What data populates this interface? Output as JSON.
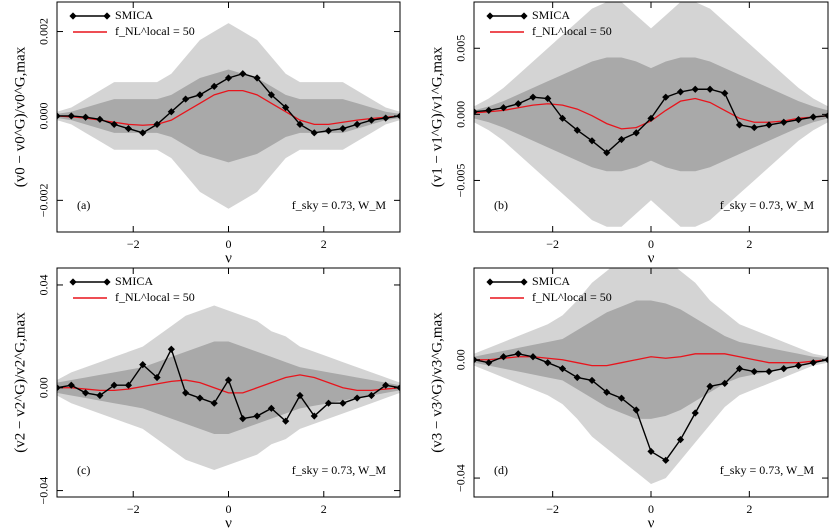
{
  "chart_data": [
    {
      "type": "line",
      "ylabel": "(v0 − v0^G)/v0^G,max",
      "xlabel": "ν",
      "panel_label": "(a)",
      "annotation": "f_sky = 0.73, W_M",
      "x": [
        -3.6,
        -3.3,
        -3.0,
        -2.7,
        -2.4,
        -2.1,
        -1.8,
        -1.5,
        -1.2,
        -0.9,
        -0.6,
        -0.3,
        0,
        0.3,
        0.6,
        0.9,
        1.2,
        1.5,
        1.8,
        2.1,
        2.4,
        2.7,
        3.0,
        3.3,
        3.6
      ],
      "xlim": [
        -3.6,
        3.6
      ],
      "xticks": [
        {
          "value": -2,
          "label": "−2"
        },
        0,
        2
      ],
      "ylim": [
        -0.00275,
        0.0027
      ],
      "yticks": [
        {
          "value": -0.002,
          "label": "−0.002"
        },
        {
          "value": 0,
          "label": "0.000"
        },
        0.002
      ],
      "legend": "upper left",
      "bands": [
        {
          "color": "#d4d4d4",
          "upper": [
            0.0001,
            0.0002,
            0.0004,
            0.0006,
            0.0008,
            0.0008,
            0.0008,
            0.0008,
            0.001,
            0.0014,
            0.0018,
            0.002,
            0.0022,
            0.002,
            0.0018,
            0.0014,
            0.001,
            0.0008,
            0.0008,
            0.0008,
            0.0008,
            0.0006,
            0.0004,
            0.0002,
            0.0001
          ],
          "lower": [
            -0.0001,
            -0.0002,
            -0.0004,
            -0.0006,
            -0.0008,
            -0.0008,
            -0.0008,
            -0.0008,
            -0.001,
            -0.0014,
            -0.0018,
            -0.002,
            -0.0022,
            -0.002,
            -0.0018,
            -0.0014,
            -0.001,
            -0.0008,
            -0.0008,
            -0.0008,
            -0.0008,
            -0.0006,
            -0.0004,
            -0.0002,
            -0.0001
          ]
        },
        {
          "color": "#a9a9a9",
          "upper": [
            5e-05,
            0.0001,
            0.0002,
            0.0003,
            0.0004,
            0.0004,
            0.0004,
            0.0004,
            0.0005,
            0.0007,
            0.0009,
            0.001,
            0.0011,
            0.001,
            0.0009,
            0.0007,
            0.0005,
            0.0004,
            0.0004,
            0.0004,
            0.0004,
            0.0003,
            0.0002,
            0.0001,
            5e-05
          ],
          "lower": [
            -5e-05,
            -0.0001,
            -0.0002,
            -0.0003,
            -0.0004,
            -0.0004,
            -0.0004,
            -0.0004,
            -0.0005,
            -0.0007,
            -0.0009,
            -0.001,
            -0.0011,
            -0.001,
            -0.0009,
            -0.0007,
            -0.0005,
            -0.0004,
            -0.0004,
            -0.0004,
            -0.0004,
            -0.0003,
            -0.0002,
            -0.0001,
            -5e-05
          ]
        }
      ],
      "series": [
        {
          "name": "SMICA",
          "color": "#000000",
          "marker": "diamond",
          "values": [
            0,
            0,
            -3e-05,
            -8e-05,
            -0.0002,
            -0.0003,
            -0.0004,
            -0.0002,
            0.0001,
            0.0004,
            0.0005,
            0.0007,
            0.0009,
            0.001,
            0.0009,
            0.0005,
            0.0002,
            -0.0002,
            -0.0004,
            -0.00035,
            -0.0003,
            -0.0002,
            -0.0001,
            -5e-05,
            0
          ]
        },
        {
          "name": "f_NL^local = 50",
          "color": "#e8141c",
          "values": [
            0,
            -2e-05,
            -5e-05,
            -0.0001,
            -0.00015,
            -0.0002,
            -0.00022,
            -0.0002,
            -0.0001,
            0.0001,
            0.0003,
            0.0005,
            0.0006,
            0.0006,
            0.0005,
            0.0003,
            0.0001,
            -0.0001,
            -0.0002,
            -0.0002,
            -0.00015,
            -0.0001,
            -6e-05,
            -3e-05,
            0
          ]
        }
      ]
    },
    {
      "type": "line",
      "ylabel": "(v1 − v1^G)/v1^G,max",
      "xlabel": "ν",
      "panel_label": "(b)",
      "annotation": "f_sky = 0.73, W_M",
      "x": [
        -3.6,
        -3.3,
        -3.0,
        -2.7,
        -2.4,
        -2.1,
        -1.8,
        -1.5,
        -1.2,
        -0.9,
        -0.6,
        -0.3,
        0,
        0.3,
        0.6,
        0.9,
        1.2,
        1.5,
        1.8,
        2.1,
        2.4,
        2.7,
        3.0,
        3.3,
        3.6
      ],
      "xlim": [
        -3.6,
        3.6
      ],
      "xticks": [
        {
          "value": -2,
          "label": "−2"
        },
        0,
        2
      ],
      "ylim": [
        -0.0089,
        0.0085
      ],
      "yticks": [
        {
          "value": -0.005,
          "label": "−0.005"
        },
        {
          "value": 0,
          "label": "0.000"
        },
        0.005
      ],
      "legend": "upper left",
      "bands": [
        {
          "color": "#d4d4d4",
          "upper": [
            0.0006,
            0.0012,
            0.002,
            0.003,
            0.004,
            0.005,
            0.006,
            0.007,
            0.008,
            0.0085,
            0.0085,
            0.0075,
            0.0065,
            0.0075,
            0.0085,
            0.0085,
            0.008,
            0.007,
            0.006,
            0.005,
            0.004,
            0.003,
            0.002,
            0.0012,
            0.0006
          ],
          "lower": [
            -0.0006,
            -0.0012,
            -0.002,
            -0.003,
            -0.004,
            -0.005,
            -0.006,
            -0.007,
            -0.008,
            -0.0085,
            -0.0085,
            -0.0075,
            -0.0065,
            -0.0075,
            -0.0085,
            -0.0085,
            -0.008,
            -0.007,
            -0.006,
            -0.005,
            -0.004,
            -0.003,
            -0.002,
            -0.0012,
            -0.0006
          ]
        },
        {
          "color": "#a9a9a9",
          "upper": [
            0.0003,
            0.0006,
            0.001,
            0.0015,
            0.002,
            0.0025,
            0.003,
            0.0035,
            0.004,
            0.0043,
            0.0043,
            0.004,
            0.0035,
            0.004,
            0.0043,
            0.0043,
            0.004,
            0.0035,
            0.003,
            0.0025,
            0.002,
            0.0015,
            0.001,
            0.0006,
            0.0003
          ],
          "lower": [
            -0.0003,
            -0.0006,
            -0.001,
            -0.0015,
            -0.002,
            -0.0025,
            -0.003,
            -0.0035,
            -0.004,
            -0.0043,
            -0.0043,
            -0.004,
            -0.0035,
            -0.004,
            -0.0043,
            -0.0043,
            -0.004,
            -0.0035,
            -0.003,
            -0.0025,
            -0.002,
            -0.0015,
            -0.001,
            -0.0006,
            -0.0003
          ]
        }
      ],
      "series": [
        {
          "name": "SMICA",
          "color": "#000000",
          "marker": "diamond",
          "values": [
            0.0002,
            0.0003,
            0.0005,
            0.0008,
            0.0013,
            0.0012,
            -0.0003,
            -0.0012,
            -0.002,
            -0.0029,
            -0.0019,
            -0.0014,
            -0.0003,
            0.0013,
            0.0017,
            0.0019,
            0.0019,
            0.0016,
            -0.0008,
            -0.001,
            -0.0008,
            -0.0006,
            -0.0004,
            -0.0002,
            -0.0001
          ]
        },
        {
          "name": "f_NL^local = 50",
          "color": "#e8141c",
          "values": [
            0.0001,
            0.0002,
            0.0003,
            0.0005,
            0.0007,
            0.0008,
            0.0007,
            0.0004,
            -0.0001,
            -0.0007,
            -0.0011,
            -0.001,
            -0.0005,
            0.0003,
            0.001,
            0.0012,
            0.0009,
            0.0003,
            -0.0003,
            -0.0006,
            -0.0006,
            -0.0005,
            -0.0003,
            -0.0002,
            -0.0001
          ]
        }
      ]
    },
    {
      "type": "line",
      "ylabel": "(v2 − v2^G)/v2^G,max",
      "xlabel": "ν",
      "panel_label": "(c)",
      "annotation": "f_sky = 0.73, W_M",
      "x": [
        -3.6,
        -3.3,
        -3.0,
        -2.7,
        -2.4,
        -2.1,
        -1.8,
        -1.5,
        -1.2,
        -0.9,
        -0.6,
        -0.3,
        0,
        0.3,
        0.6,
        0.9,
        1.2,
        1.5,
        1.8,
        2.1,
        2.4,
        2.7,
        3.0,
        3.3,
        3.6
      ],
      "xlim": [
        -3.6,
        3.6
      ],
      "xticks": [
        {
          "value": -2,
          "label": "−2"
        },
        0,
        2
      ],
      "ylim": [
        -0.0425,
        0.0466
      ],
      "yticks": [
        {
          "value": -0.04,
          "label": "−0.04"
        },
        {
          "value": 0,
          "label": "0.00"
        },
        0.04
      ],
      "legend": "upper left",
      "bands": [
        {
          "color": "#d4d4d4",
          "upper": [
            0.003,
            0.006,
            0.008,
            0.01,
            0.012,
            0.014,
            0.016,
            0.02,
            0.024,
            0.028,
            0.03,
            0.032,
            0.03,
            0.028,
            0.026,
            0.022,
            0.02,
            0.016,
            0.014,
            0.012,
            0.01,
            0.008,
            0.006,
            0.004,
            0.002
          ],
          "lower": [
            -0.003,
            -0.006,
            -0.008,
            -0.01,
            -0.012,
            -0.014,
            -0.016,
            -0.02,
            -0.024,
            -0.028,
            -0.03,
            -0.032,
            -0.03,
            -0.028,
            -0.026,
            -0.022,
            -0.02,
            -0.016,
            -0.014,
            -0.012,
            -0.01,
            -0.008,
            -0.006,
            -0.004,
            -0.002
          ]
        },
        {
          "color": "#a9a9a9",
          "upper": [
            0.002,
            0.003,
            0.004,
            0.005,
            0.006,
            0.007,
            0.008,
            0.01,
            0.012,
            0.014,
            0.016,
            0.018,
            0.018,
            0.016,
            0.014,
            0.012,
            0.01,
            0.008,
            0.007,
            0.006,
            0.005,
            0.004,
            0.003,
            0.002,
            0.001
          ],
          "lower": [
            -0.002,
            -0.003,
            -0.004,
            -0.005,
            -0.006,
            -0.007,
            -0.008,
            -0.01,
            -0.012,
            -0.014,
            -0.016,
            -0.018,
            -0.018,
            -0.016,
            -0.014,
            -0.012,
            -0.01,
            -0.008,
            -0.007,
            -0.006,
            -0.005,
            -0.004,
            -0.003,
            -0.002,
            -0.001
          ]
        }
      ],
      "series": [
        {
          "name": "SMICA",
          "color": "#000000",
          "marker": "diamond",
          "values": [
            0,
            0.001,
            -0.002,
            -0.003,
            0.001,
            0.001,
            0.009,
            0.004,
            0.015,
            -0.002,
            -0.004,
            -0.006,
            0.003,
            -0.012,
            -0.011,
            -0.008,
            -0.013,
            -0.003,
            -0.011,
            -0.006,
            -0.006,
            -0.004,
            -0.003,
            0.001,
            0
          ]
        },
        {
          "name": "f_NL^local = 50",
          "color": "#e8141c",
          "values": [
            0,
            0,
            -0.0005,
            -0.001,
            -0.001,
            -0.0005,
            0.0005,
            0.0015,
            0.0025,
            0.003,
            0.002,
            0,
            -0.002,
            -0.002,
            0,
            0.002,
            0.004,
            0.005,
            0.004,
            0.002,
            0,
            -0.001,
            -0.001,
            -0.0005,
            0
          ]
        }
      ]
    },
    {
      "type": "line",
      "ylabel": "(v3 − v3^G)/v3^G,max",
      "xlabel": "ν",
      "panel_label": "(d)",
      "annotation": "f_sky = 0.73, W_M",
      "x": [
        -3.6,
        -3.3,
        -3.0,
        -2.7,
        -2.4,
        -2.1,
        -1.8,
        -1.5,
        -1.2,
        -0.9,
        -0.6,
        -0.3,
        0,
        0.3,
        0.6,
        0.9,
        1.2,
        1.5,
        1.8,
        2.1,
        2.4,
        2.7,
        3.0,
        3.3,
        3.6
      ],
      "xlim": [
        -3.6,
        3.6
      ],
      "xticks": [
        {
          "value": -2,
          "label": "−2"
        },
        0,
        2
      ],
      "ylim": [
        -0.0464,
        0.031
      ],
      "yticks": [
        {
          "value": -0.04,
          "label": "−0.04"
        },
        {
          "value": 0,
          "label": "0.00"
        }
      ],
      "legend": "upper left",
      "bands": [
        {
          "color": "#d4d4d4",
          "upper": [
            0.002,
            0.004,
            0.006,
            0.008,
            0.01,
            0.012,
            0.015,
            0.02,
            0.026,
            0.03,
            0.034,
            0.036,
            0.036,
            0.034,
            0.03,
            0.026,
            0.02,
            0.016,
            0.012,
            0.01,
            0.008,
            0.006,
            0.004,
            0.002,
            0.001
          ],
          "lower": [
            -0.002,
            -0.004,
            -0.006,
            -0.008,
            -0.01,
            -0.012,
            -0.015,
            -0.02,
            -0.026,
            -0.03,
            -0.034,
            -0.038,
            -0.042,
            -0.04,
            -0.034,
            -0.028,
            -0.022,
            -0.016,
            -0.012,
            -0.01,
            -0.008,
            -0.006,
            -0.004,
            -0.002,
            -0.001
          ]
        },
        {
          "color": "#a9a9a9",
          "upper": [
            0.001,
            0.002,
            0.003,
            0.004,
            0.005,
            0.006,
            0.007,
            0.01,
            0.013,
            0.016,
            0.018,
            0.02,
            0.02,
            0.019,
            0.017,
            0.014,
            0.011,
            0.008,
            0.006,
            0.005,
            0.004,
            0.003,
            0.002,
            0.001,
            0.0005
          ],
          "lower": [
            -0.001,
            -0.002,
            -0.003,
            -0.004,
            -0.005,
            -0.006,
            -0.007,
            -0.01,
            -0.013,
            -0.016,
            -0.018,
            -0.02,
            -0.02,
            -0.019,
            -0.017,
            -0.014,
            -0.011,
            -0.008,
            -0.006,
            -0.005,
            -0.004,
            -0.003,
            -0.002,
            -0.001,
            -0.0005
          ]
        }
      ],
      "series": [
        {
          "name": "SMICA",
          "color": "#000000",
          "marker": "diamond",
          "values": [
            0,
            -0.001,
            0.001,
            0.002,
            0.001,
            -0.001,
            -0.003,
            -0.006,
            -0.007,
            -0.011,
            -0.013,
            -0.017,
            -0.031,
            -0.034,
            -0.027,
            -0.018,
            -0.009,
            -0.008,
            -0.003,
            -0.004,
            -0.004,
            -0.003,
            -0.002,
            -0.001,
            0
          ]
        },
        {
          "name": "f_NL^local = 50",
          "color": "#e8141c",
          "values": [
            0,
            0,
            0.0005,
            0.001,
            0.001,
            0.0005,
            0,
            -0.001,
            -0.002,
            -0.002,
            -0.001,
            0,
            0.001,
            0.0005,
            0.001,
            0.002,
            0.002,
            0.002,
            0.001,
            0,
            -0.001,
            -0.001,
            -0.001,
            -0.0005,
            0
          ]
        }
      ]
    }
  ]
}
